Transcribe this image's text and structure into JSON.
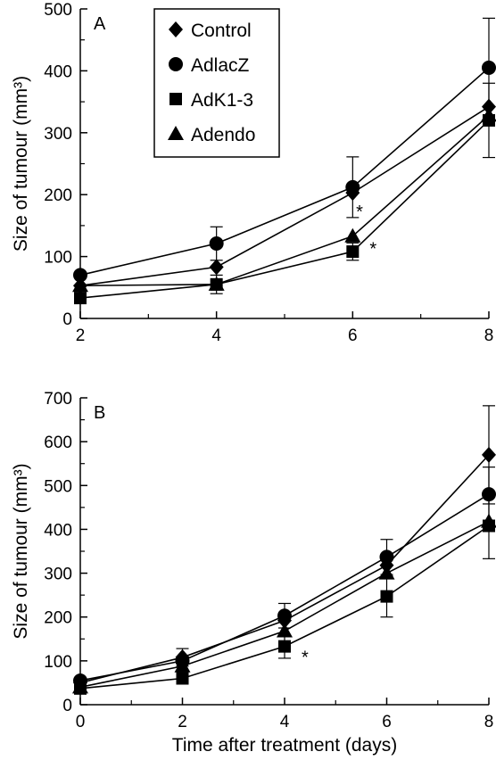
{
  "chart_data": [
    {
      "type": "line",
      "panel_label": "A",
      "xlabel": "",
      "ylabel": "Size of tumour (mm³)",
      "x": [
        2,
        4,
        6,
        8
      ],
      "xlim": [
        2,
        8
      ],
      "ylim": [
        0,
        500
      ],
      "xticks": [
        2,
        4,
        6,
        8
      ],
      "yticks": [
        0,
        100,
        200,
        300,
        400,
        500
      ],
      "legend": "top-left",
      "grid": false,
      "series": [
        {
          "name": "Control",
          "marker": "diamond",
          "values": [
            53,
            83,
            203,
            342
          ]
        },
        {
          "name": "AdlacZ",
          "marker": "circle",
          "values": [
            70,
            121,
            212,
            405
          ],
          "error": [
            null,
            27,
            49,
            80
          ]
        },
        {
          "name": "AdK1-3",
          "marker": "square",
          "values": [
            33,
            55,
            108,
            320
          ],
          "error": [
            null,
            15,
            14,
            60
          ]
        },
        {
          "name": "Adendo",
          "marker": "triangle",
          "values": [
            53,
            55,
            133,
            328
          ]
        }
      ],
      "annotations": [
        {
          "text": "*",
          "x": 6.1,
          "y": 163
        },
        {
          "text": "*",
          "x": 6.3,
          "y": 103
        }
      ]
    },
    {
      "type": "line",
      "panel_label": "B",
      "xlabel": "Time after treatment (days)",
      "ylabel": "Size of tumour (mm³)",
      "x": [
        0,
        2,
        4,
        6,
        8
      ],
      "xlim": [
        0,
        8
      ],
      "ylim": [
        0,
        700
      ],
      "xticks": [
        0,
        2,
        4,
        6,
        8
      ],
      "yticks": [
        0,
        100,
        200,
        300,
        400,
        500,
        600,
        700
      ],
      "legend": "none",
      "grid": false,
      "series": [
        {
          "name": "Control",
          "marker": "diamond",
          "values": [
            50,
            108,
            192,
            318,
            570
          ],
          "error": [
            null,
            20,
            null,
            null,
            112
          ]
        },
        {
          "name": "AdlacZ",
          "marker": "circle",
          "values": [
            55,
            100,
            203,
            337,
            480
          ],
          "error": [
            null,
            null,
            28,
            40,
            62
          ]
        },
        {
          "name": "AdK1-3",
          "marker": "square",
          "values": [
            37,
            60,
            133,
            247,
            408
          ],
          "error": [
            null,
            null,
            27,
            47,
            75
          ]
        },
        {
          "name": "Adendo",
          "marker": "triangle",
          "values": [
            40,
            88,
            168,
            300,
            418
          ]
        }
      ],
      "annotations": [
        {
          "text": "*",
          "x": 4.4,
          "y": 95
        }
      ]
    }
  ]
}
